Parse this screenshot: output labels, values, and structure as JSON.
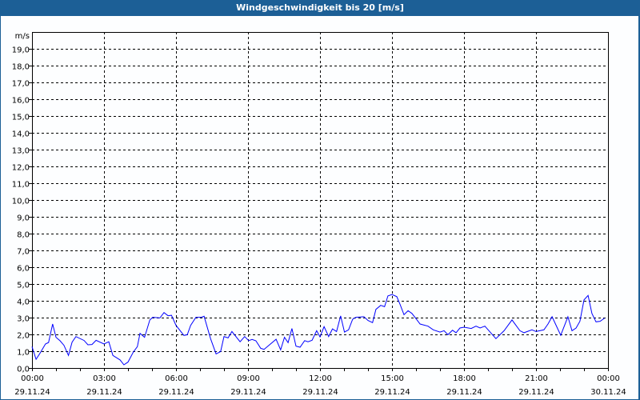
{
  "chart_data": {
    "type": "line",
    "title": "Windgeschwindigkeit bis 20 [m/s]",
    "ylabel": "m/s",
    "xlabel": "",
    "ylim": [
      0,
      20
    ],
    "xlim_hours": [
      0,
      24
    ],
    "grid": true,
    "y_ticks": [
      "0,0",
      "1,0",
      "2,0",
      "3,0",
      "4,0",
      "5,0",
      "6,0",
      "7,0",
      "8,0",
      "9,0",
      "10,0",
      "11,0",
      "12,0",
      "13,0",
      "14,0",
      "15,0",
      "16,0",
      "17,0",
      "18,0",
      "19,0"
    ],
    "x_ticks": [
      {
        "time": "00:00",
        "date": "29.11.24"
      },
      {
        "time": "03:00",
        "date": "29.11.24"
      },
      {
        "time": "06:00",
        "date": "29.11.24"
      },
      {
        "time": "09:00",
        "date": "29.11.24"
      },
      {
        "time": "12:00",
        "date": "29.11.24"
      },
      {
        "time": "15:00",
        "date": "29.11.24"
      },
      {
        "time": "18:00",
        "date": "29.11.24"
      },
      {
        "time": "21:00",
        "date": "29.11.24"
      },
      {
        "time": "00:00",
        "date": "30.11.24"
      }
    ],
    "series": [
      {
        "name": "Windgeschwindigkeit",
        "color": "#0000ff",
        "x_hours": [
          0,
          0.17,
          0.33,
          0.56,
          0.69,
          0.86,
          1.0,
          1.17,
          1.33,
          1.52,
          1.67,
          1.83,
          2.17,
          2.33,
          2.5,
          2.67,
          3.0,
          3.2,
          3.37,
          3.67,
          3.83,
          4.0,
          4.22,
          4.39,
          4.5,
          4.69,
          4.91,
          5.03,
          5.33,
          5.5,
          5.67,
          5.81,
          6.0,
          6.33,
          6.47,
          6.61,
          6.83,
          7.06,
          7.17,
          7.44,
          7.67,
          7.86,
          8.0,
          8.17,
          8.33,
          8.67,
          8.86,
          9.03,
          9.17,
          9.33,
          9.53,
          9.67,
          10.17,
          10.36,
          10.52,
          10.67,
          10.83,
          11.0,
          11.17,
          11.36,
          11.5,
          11.67,
          11.86,
          12.0,
          12.17,
          12.36,
          12.52,
          12.69,
          12.86,
          13.02,
          13.19,
          13.36,
          13.5,
          13.83,
          14.0,
          14.19,
          14.33,
          14.53,
          14.69,
          14.83,
          15.0,
          15.2,
          15.33,
          15.5,
          15.67,
          15.83,
          16.0,
          16.17,
          16.5,
          16.72,
          17.0,
          17.17,
          17.33,
          17.52,
          17.67,
          17.83,
          18.0,
          18.3,
          18.5,
          18.67,
          18.87,
          19.33,
          19.67,
          20.0,
          20.33,
          20.5,
          20.83,
          21.0,
          21.33,
          21.5,
          21.67,
          22.03,
          22.33,
          22.5,
          22.67,
          22.83,
          23.0,
          23.17,
          23.33,
          23.5,
          23.67,
          23.86
        ],
        "values": [
          1.27,
          0.52,
          0.87,
          1.43,
          1.52,
          2.62,
          1.83,
          1.62,
          1.35,
          0.75,
          1.54,
          1.87,
          1.64,
          1.38,
          1.4,
          1.65,
          1.43,
          1.56,
          0.75,
          0.48,
          0.19,
          0.35,
          0.95,
          1.27,
          2.06,
          1.83,
          2.86,
          3.02,
          2.98,
          3.3,
          3.11,
          3.14,
          2.54,
          1.94,
          1.98,
          2.54,
          3.02,
          3.02,
          3.08,
          1.75,
          0.84,
          0.98,
          1.87,
          1.79,
          2.17,
          1.56,
          1.87,
          1.63,
          1.7,
          1.62,
          1.17,
          1.11,
          1.71,
          1.08,
          1.83,
          1.51,
          2.35,
          1.3,
          1.24,
          1.63,
          1.56,
          1.65,
          2.22,
          1.85,
          2.46,
          1.87,
          2.33,
          2.17,
          3.1,
          2.14,
          2.27,
          2.9,
          3.02,
          3.05,
          2.83,
          2.7,
          3.49,
          3.73,
          3.65,
          4.29,
          4.37,
          4.25,
          3.81,
          3.17,
          3.41,
          3.25,
          2.94,
          2.62,
          2.49,
          2.27,
          2.14,
          2.22,
          1.98,
          2.25,
          2.1,
          2.38,
          2.43,
          2.35,
          2.49,
          2.38,
          2.49,
          1.75,
          2.22,
          2.86,
          2.22,
          2.1,
          2.27,
          2.17,
          2.27,
          2.62,
          3.05,
          1.95,
          3.05,
          2.22,
          2.38,
          2.78,
          4.05,
          4.32,
          3.25,
          2.75,
          2.78,
          2.97
        ]
      }
    ]
  }
}
